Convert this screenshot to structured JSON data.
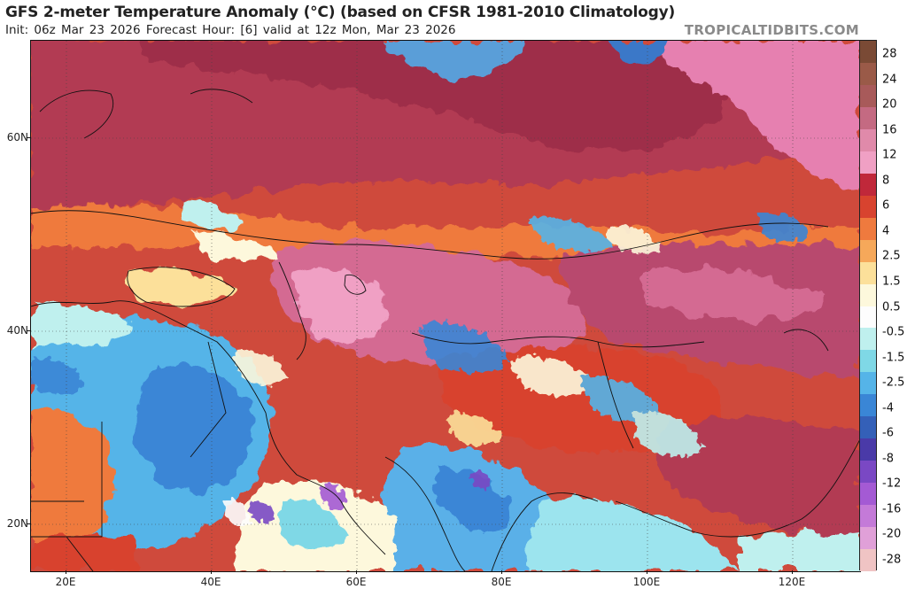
{
  "header": {
    "title": "GFS 2-meter Temperature Anomaly (°C) (based on CFSR 1981-2010 Climatology)",
    "subtitle": "Init: 06z Mar 23 2026   Forecast Hour: [6]   valid at 12z Mon, Mar 23 2026",
    "brand": "TROPICALTIDBITS.COM"
  },
  "map": {
    "lat_labels": [
      "60N",
      "40N",
      "20N"
    ],
    "lon_labels": [
      "20E",
      "40E",
      "60E",
      "80E",
      "100E",
      "120E"
    ]
  },
  "colorbar": {
    "labels": [
      "28",
      "24",
      "20",
      "16",
      "12",
      "8",
      "6",
      "4",
      "2.5",
      "1.5",
      "0.5",
      "-0.5",
      "-1.5",
      "-2.5",
      "-4",
      "-6",
      "-8",
      "-12",
      "-16",
      "-20",
      "-28"
    ],
    "colors": [
      "#7a4a35",
      "#9a5a48",
      "#a85a5a",
      "#c46a82",
      "#e08aaa",
      "#f0a0c4",
      "#c0283a",
      "#d8432f",
      "#ef7a3e",
      "#f6a85a",
      "#fce09a",
      "#fdf8dc",
      "#fdfdfd",
      "#bff0ee",
      "#7fd8e6",
      "#55b4e8",
      "#3a86d6",
      "#3460b8",
      "#4a3aa8",
      "#7a48c4",
      "#a45ad4",
      "#c47ad8",
      "#e0a0d8",
      "#f0c4c4"
    ]
  }
}
